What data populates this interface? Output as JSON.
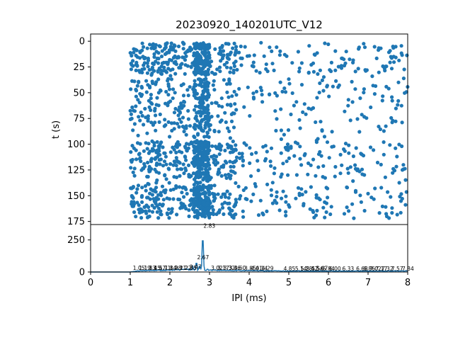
{
  "title": "20230920_140201UTC_V12",
  "colors": {
    "series": "#1f77b4",
    "axes": "#000000",
    "background": "#ffffff"
  },
  "chart_data": [
    {
      "type": "scatter",
      "ylabel": "t (s)",
      "yticks": [
        "0",
        "25",
        "50",
        "75",
        "100",
        "125",
        "150",
        "175"
      ],
      "ytick_values": [
        0,
        25,
        50,
        75,
        100,
        125,
        150,
        175
      ],
      "ylim": [
        178,
        -7
      ],
      "xlim": [
        0,
        8
      ],
      "y_inverted": true,
      "point_count_estimate": 1800,
      "y_bands": [
        {
          "y0": 2,
          "y1": 32,
          "density": 1.0
        },
        {
          "y0": 36,
          "y1": 88,
          "density": 0.55
        },
        {
          "y0": 97,
          "y1": 133,
          "density": 1.0
        },
        {
          "y0": 140,
          "y1": 172,
          "density": 0.9
        }
      ],
      "x_range": [
        1.0,
        8.0
      ],
      "dense_column": [
        2.6,
        3.0
      ],
      "moderate_zone": [
        1.0,
        3.7
      ]
    },
    {
      "type": "line",
      "xlabel": "IPI (ms)",
      "xticks": [
        "0",
        "1",
        "2",
        "3",
        "4",
        "5",
        "6",
        "7",
        "8"
      ],
      "xtick_values": [
        0,
        1,
        2,
        3,
        4,
        5,
        6,
        7,
        8
      ],
      "yticks": [
        "0",
        "250"
      ],
      "ytick_values": [
        0,
        250
      ],
      "xlim": [
        0,
        8
      ],
      "ylim": [
        0,
        370
      ],
      "peaks": [
        {
          "x": 2.83,
          "y": 340
        },
        {
          "x": 2.67,
          "y": 95
        },
        {
          "x": 2.75,
          "y": 60
        },
        {
          "x": 2.58,
          "y": 40
        },
        {
          "x": 2.95,
          "y": 30
        }
      ],
      "baseline": [
        {
          "x": 0,
          "y": 0
        },
        {
          "x": 1.0,
          "y": 0
        },
        {
          "x": 1.2,
          "y": 6
        },
        {
          "x": 1.6,
          "y": 9
        },
        {
          "x": 2.0,
          "y": 10
        },
        {
          "x": 2.4,
          "y": 14
        },
        {
          "x": 3.2,
          "y": 10
        },
        {
          "x": 3.8,
          "y": 8
        },
        {
          "x": 4.5,
          "y": 6
        },
        {
          "x": 5.5,
          "y": 5
        },
        {
          "x": 6.5,
          "y": 5
        },
        {
          "x": 7.5,
          "y": 5
        },
        {
          "x": 8.0,
          "y": 5
        }
      ],
      "peak_labels": [
        {
          "x": 2.83,
          "y": 340,
          "text": "2.83"
        },
        {
          "x": 2.67,
          "y": 95,
          "text": "2.67"
        },
        {
          "x": 1.05,
          "y": 10,
          "text": "1.05"
        },
        {
          "x": 1.2,
          "y": 10,
          "text": "1.19"
        },
        {
          "x": 1.33,
          "y": 10,
          "text": "1.33"
        },
        {
          "x": 1.45,
          "y": 10,
          "text": "1.45"
        },
        {
          "x": 1.58,
          "y": 12,
          "text": "1.57"
        },
        {
          "x": 1.71,
          "y": 12,
          "text": "1.71"
        },
        {
          "x": 1.85,
          "y": 12,
          "text": "1.84"
        },
        {
          "x": 1.98,
          "y": 12,
          "text": "1.98"
        },
        {
          "x": 2.1,
          "y": 12,
          "text": "2.11"
        },
        {
          "x": 2.23,
          "y": 12,
          "text": "2.22"
        },
        {
          "x": 2.36,
          "y": 12,
          "text": "2.35"
        },
        {
          "x": 2.48,
          "y": 18,
          "text": "2.47"
        },
        {
          "x": 3.02,
          "y": 12,
          "text": "3.02"
        },
        {
          "x": 3.18,
          "y": 10,
          "text": "3.17"
        },
        {
          "x": 3.33,
          "y": 10,
          "text": "3.32"
        },
        {
          "x": 3.47,
          "y": 10,
          "text": "3.46"
        },
        {
          "x": 3.6,
          "y": 10,
          "text": "3.60"
        },
        {
          "x": 3.86,
          "y": 8,
          "text": "3.85"
        },
        {
          "x": 4.02,
          "y": 8,
          "text": "4.01"
        },
        {
          "x": 4.15,
          "y": 8,
          "text": "4.14"
        },
        {
          "x": 4.3,
          "y": 8,
          "text": "4.29"
        },
        {
          "x": 4.85,
          "y": 6,
          "text": "4.85"
        },
        {
          "x": 5.14,
          "y": 6,
          "text": "5.14"
        },
        {
          "x": 5.28,
          "y": 6,
          "text": "5.28"
        },
        {
          "x": 5.42,
          "y": 6,
          "text": "5.42"
        },
        {
          "x": 5.56,
          "y": 6,
          "text": "5.56"
        },
        {
          "x": 5.67,
          "y": 9,
          "text": "5.67"
        },
        {
          "x": 5.84,
          "y": 6,
          "text": "5.84"
        },
        {
          "x": 6.0,
          "y": 6,
          "text": "6.00"
        },
        {
          "x": 6.33,
          "y": 6,
          "text": "6.33"
        },
        {
          "x": 6.68,
          "y": 6,
          "text": "6.68"
        },
        {
          "x": 6.86,
          "y": 6,
          "text": "6.86"
        },
        {
          "x": 7.02,
          "y": 6,
          "text": "7.02"
        },
        {
          "x": 7.17,
          "y": 6,
          "text": "7.17"
        },
        {
          "x": 7.32,
          "y": 6,
          "text": "7.32"
        },
        {
          "x": 7.57,
          "y": 6,
          "text": "7.57"
        },
        {
          "x": 7.84,
          "y": 6,
          "text": "7.84"
        }
      ]
    }
  ]
}
